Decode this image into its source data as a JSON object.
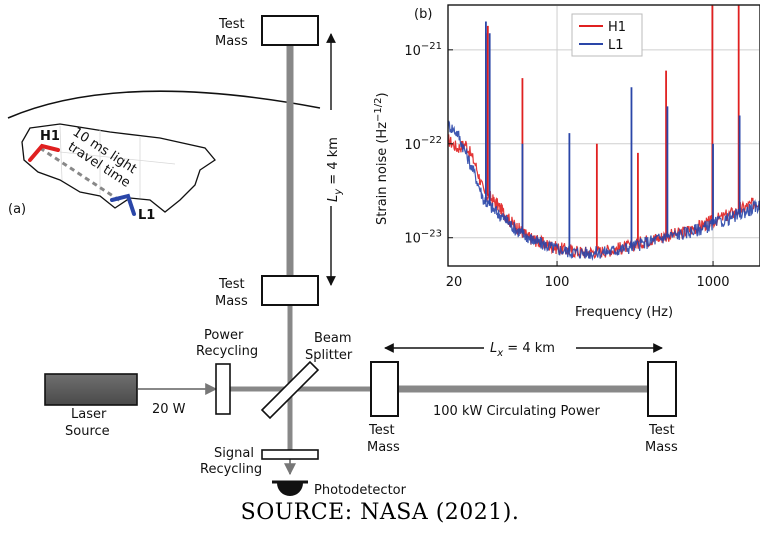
{
  "map": {
    "panel_label": "(a)",
    "site_h1": "H1",
    "site_l1": "L1",
    "travel_line1": "10 ms light",
    "travel_line2": "travel time",
    "colors": {
      "h1": "#e02020",
      "l1": "#2a46a8"
    }
  },
  "interferometer": {
    "test_mass_top_label1": "Test",
    "test_mass_top_label2": "Mass",
    "test_mass_mid_label1": "Test",
    "test_mass_mid_label2": "Mass",
    "test_mass_x_near1": "Test",
    "test_mass_x_near2": "Mass",
    "test_mass_x_far1": "Test",
    "test_mass_x_far2": "Mass",
    "ly_label": "L",
    "ly_sub": "y",
    "ly_value": " = 4 km",
    "lx_label": "L",
    "lx_sub": "x",
    "lx_value": " = 4 km",
    "power_recycling1": "Power",
    "power_recycling2": "Recycling",
    "beam_splitter1": "Beam",
    "beam_splitter2": "Splitter",
    "laser1": "Laser",
    "laser2": "Source",
    "laser_power": "20 W",
    "circulating": "100 kW Circulating Power",
    "signal_recycling1": "Signal",
    "signal_recycling2": "Recycling",
    "photodetector": "Photodetector"
  },
  "chart_data": {
    "type": "line",
    "panel_label": "(b)",
    "xlabel": "Frequency (Hz)",
    "ylabel_main": "Strain noise (Hz",
    "ylabel_sup": "−1/2",
    "ylabel_end": ")",
    "x_scale": "log",
    "y_scale": "log",
    "xlim": [
      20,
      2000
    ],
    "ylim": [
      5e-24,
      3e-21
    ],
    "x_ticks": [
      {
        "value": 20,
        "label": "20"
      },
      {
        "value": 100,
        "label": "100"
      },
      {
        "value": 1000,
        "label": "1000"
      }
    ],
    "y_ticks": [
      {
        "value": 1e-21,
        "base": "10",
        "exp": "−21"
      },
      {
        "value": 1e-22,
        "base": "10",
        "exp": "−22"
      },
      {
        "value": 1e-23,
        "base": "10",
        "exp": "−23"
      }
    ],
    "grid": true,
    "legend_position": "top-right",
    "series": [
      {
        "name": "H1",
        "color": "#e02020",
        "x": [
          20,
          23,
          26,
          30,
          34,
          38,
          42,
          46,
          50,
          55,
          60,
          66,
          72,
          80,
          90,
          100,
          115,
          130,
          150,
          170,
          200,
          230,
          260,
          300,
          350,
          400,
          450,
          500,
          600,
          700,
          800,
          900,
          1000,
          1200,
          1400,
          1600,
          1800,
          2000
        ],
        "y": [
          1.1e-22,
          9e-23,
          1e-22,
          6e-23,
          3e-23,
          2.6e-23,
          2.2e-23,
          1.8e-23,
          1.5e-23,
          1.3e-23,
          1.15e-23,
          1e-23,
          9.5e-24,
          8.8e-24,
          8.2e-24,
          7.8e-24,
          7.4e-24,
          7.2e-24,
          7e-24,
          7.1e-24,
          7.2e-24,
          7.5e-24,
          7.8e-24,
          8.2e-24,
          9e-24,
          9.6e-24,
          1e-23,
          1.05e-23,
          1.1e-23,
          1.2e-23,
          1.3e-23,
          1.4e-23,
          1.5e-23,
          1.7e-23,
          1.9e-23,
          2.1e-23,
          2.3e-23,
          2.5e-23
        ],
        "spikes": [
          {
            "x": 35,
            "y": 1.5e-21
          },
          {
            "x": 36,
            "y": 1.8e-21
          },
          {
            "x": 60,
            "y": 5e-22
          },
          {
            "x": 180,
            "y": 1e-22
          },
          {
            "x": 330,
            "y": 8e-23
          },
          {
            "x": 500,
            "y": 6e-22
          },
          {
            "x": 990,
            "y": 3e-21
          },
          {
            "x": 1460,
            "y": 3e-21
          }
        ]
      },
      {
        "name": "L1",
        "color": "#2a46a8",
        "x": [
          20,
          23,
          26,
          30,
          34,
          38,
          42,
          46,
          50,
          55,
          60,
          66,
          72,
          80,
          90,
          100,
          115,
          130,
          150,
          170,
          200,
          230,
          260,
          300,
          350,
          400,
          450,
          500,
          600,
          700,
          800,
          900,
          1000,
          1200,
          1400,
          1600,
          1800,
          2000
        ],
        "y": [
          1.6e-22,
          1.3e-22,
          8e-23,
          4.5e-23,
          2.5e-23,
          2.1e-23,
          1.8e-23,
          1.6e-23,
          1.4e-23,
          1.2e-23,
          1.1e-23,
          1e-23,
          9.2e-24,
          8.6e-24,
          8e-24,
          7.6e-24,
          7.2e-24,
          7e-24,
          6.9e-24,
          6.9e-24,
          7e-24,
          7.3e-24,
          7.6e-24,
          8e-24,
          8.6e-24,
          9.2e-24,
          9.8e-24,
          1.02e-23,
          1.08e-23,
          1.15e-23,
          1.22e-23,
          1.3e-23,
          1.38e-23,
          1.55e-23,
          1.7e-23,
          1.9e-23,
          2.05e-23,
          2.2e-23
        ],
        "spikes": [
          {
            "x": 35,
            "y": 2e-21
          },
          {
            "x": 37,
            "y": 1.5e-21
          },
          {
            "x": 60,
            "y": 1e-22
          },
          {
            "x": 120,
            "y": 1.3e-22
          },
          {
            "x": 300,
            "y": 4e-22
          },
          {
            "x": 510,
            "y": 2.5e-22
          },
          {
            "x": 1000,
            "y": 1e-22
          },
          {
            "x": 1480,
            "y": 2e-22
          }
        ]
      }
    ]
  },
  "caption": "SOURCE: NASA (2021)."
}
